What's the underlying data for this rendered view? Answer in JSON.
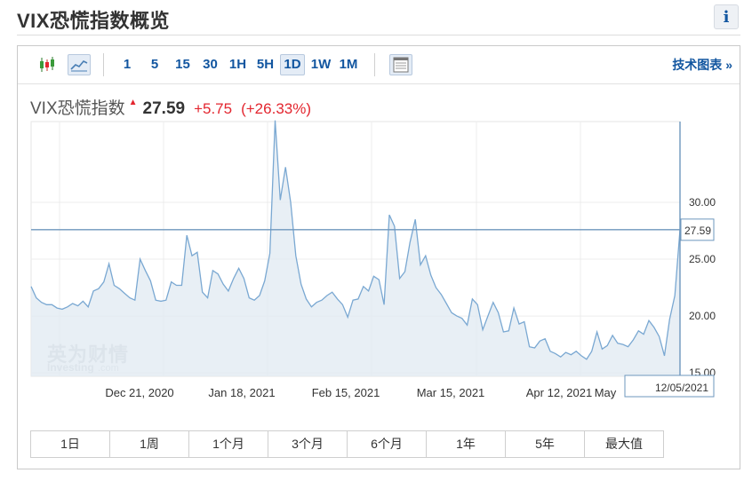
{
  "page": {
    "title": "VIX恐慌指数概览",
    "info_icon": "i"
  },
  "toolbar": {
    "chart_type_icons": [
      "candlestick-icon",
      "area-chart-icon"
    ],
    "intervals": [
      "1",
      "5",
      "15",
      "30",
      "1H",
      "5H",
      "1D",
      "1W",
      "1M"
    ],
    "active_interval": "1D",
    "table_icon": "table-view-icon",
    "advanced_link": "技术图表 »"
  },
  "quote": {
    "name": "VIX恐慌指数",
    "direction_icon": "up-arrow-icon",
    "price": "27.59",
    "change": "+5.75",
    "change_pct": "(+26.33%)",
    "up_color": "#e3262f"
  },
  "watermark": {
    "cn": "英为财情",
    "en_main": "Investing",
    "en_suffix": ".com"
  },
  "chart_data": {
    "type": "area",
    "x_tick_labels": [
      "Dec 21, 2020",
      "Jan 18, 2021",
      "Feb 15, 2021",
      "Mar 15, 2021",
      "Apr 12, 2021",
      "May"
    ],
    "y_ticks": [
      15,
      20,
      25,
      30
    ],
    "y_tick_labels": [
      "15.00",
      "20.00",
      "25.00",
      "30.00"
    ],
    "ylim": [
      14.7,
      37.1
    ],
    "grid": true,
    "current_value": 27.59,
    "current_value_label": "27.59",
    "current_date_label": "12/05/2021",
    "colors": {
      "line": "#7aa8d2",
      "fill": "#e2ebf3",
      "crosshair": "#6e97bd",
      "label_border": "#6e97bd"
    },
    "series": [
      {
        "values": [
          22.6,
          21.6,
          21.2,
          21.0,
          21.0,
          20.7,
          20.6,
          20.8,
          21.1,
          20.9,
          21.3,
          20.8,
          22.2,
          22.4,
          23.0,
          24.6,
          22.7,
          22.4,
          22.0,
          21.6,
          21.4,
          25.0,
          24.0,
          23.1,
          21.4,
          21.3,
          21.4,
          23.0,
          22.7,
          22.7,
          27.1,
          25.3,
          25.6,
          22.1,
          21.6,
          24.0,
          23.7,
          22.8,
          22.2,
          23.3,
          24.2,
          23.3,
          21.6,
          21.4,
          21.8,
          23.1,
          25.5,
          37.2,
          30.2,
          33.1,
          30.0,
          25.3,
          22.8,
          21.5,
          20.8,
          21.2,
          21.4,
          21.8,
          22.1,
          21.5,
          21.0,
          19.9,
          21.4,
          21.5,
          22.6,
          22.2,
          23.5,
          23.2,
          21.0,
          28.9,
          27.9,
          23.3,
          23.9,
          26.5,
          28.5,
          24.5,
          25.3,
          23.6,
          22.5,
          21.9,
          21.1,
          20.3,
          20.0,
          19.8,
          19.2,
          21.5,
          21.0,
          18.8,
          20.0,
          21.2,
          20.3,
          18.6,
          18.7,
          20.7,
          19.3,
          19.5,
          17.3,
          17.2,
          17.8,
          18.0,
          16.9,
          16.7,
          16.4,
          16.8,
          16.6,
          16.9,
          16.5,
          16.2,
          16.9,
          18.6,
          17.1,
          17.4,
          18.3,
          17.6,
          17.5,
          17.3,
          17.9,
          18.7,
          18.4,
          19.6,
          19.0,
          18.2,
          16.5,
          19.7,
          21.8,
          27.59
        ]
      }
    ]
  },
  "ranges": [
    "1日",
    "1周",
    "1个月",
    "3个月",
    "6个月",
    "1年",
    "5年",
    "最大值"
  ]
}
